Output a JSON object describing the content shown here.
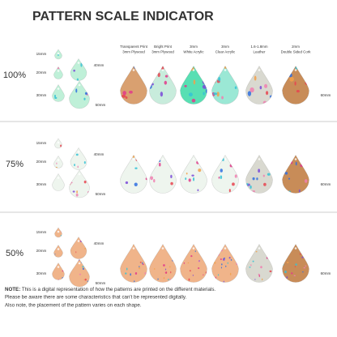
{
  "title": "PATTERN SCALE INDICATOR",
  "columns": [
    {
      "lines": [
        "Transparent Print",
        "3mm Plywood"
      ]
    },
    {
      "lines": [
        "Bright Print",
        "3mm Plywood"
      ]
    },
    {
      "lines": [
        "3mm",
        "White Acrylic"
      ]
    },
    {
      "lines": [
        "3mm",
        "Clear Acrylic"
      ]
    },
    {
      "lines": [
        "1.6-1.8mm",
        "Leather"
      ]
    },
    {
      "lines": [
        "2mm",
        "Double Sided Cork"
      ]
    }
  ],
  "rows": [
    {
      "scale": "100%",
      "size_labels": [
        "15mm",
        "20mm",
        "30mm",
        "40mm",
        "50mm",
        "60mm"
      ]
    },
    {
      "scale": "75%",
      "size_labels": [
        "15mm",
        "20mm",
        "30mm",
        "40mm",
        "50mm",
        "60mm"
      ]
    },
    {
      "scale": "50%",
      "size_labels": [
        "15mm",
        "20mm",
        "30mm",
        "40mm",
        "50mm",
        "60mm"
      ]
    }
  ],
  "note": {
    "label": "NOTE:",
    "lines": [
      " This is a digital representation of how the patterns are printed on the different materials.",
      "Please be aware there are some characteristics that can't be represented digitally.",
      "Also note, the placement of the pattern varies on each shape."
    ]
  }
}
